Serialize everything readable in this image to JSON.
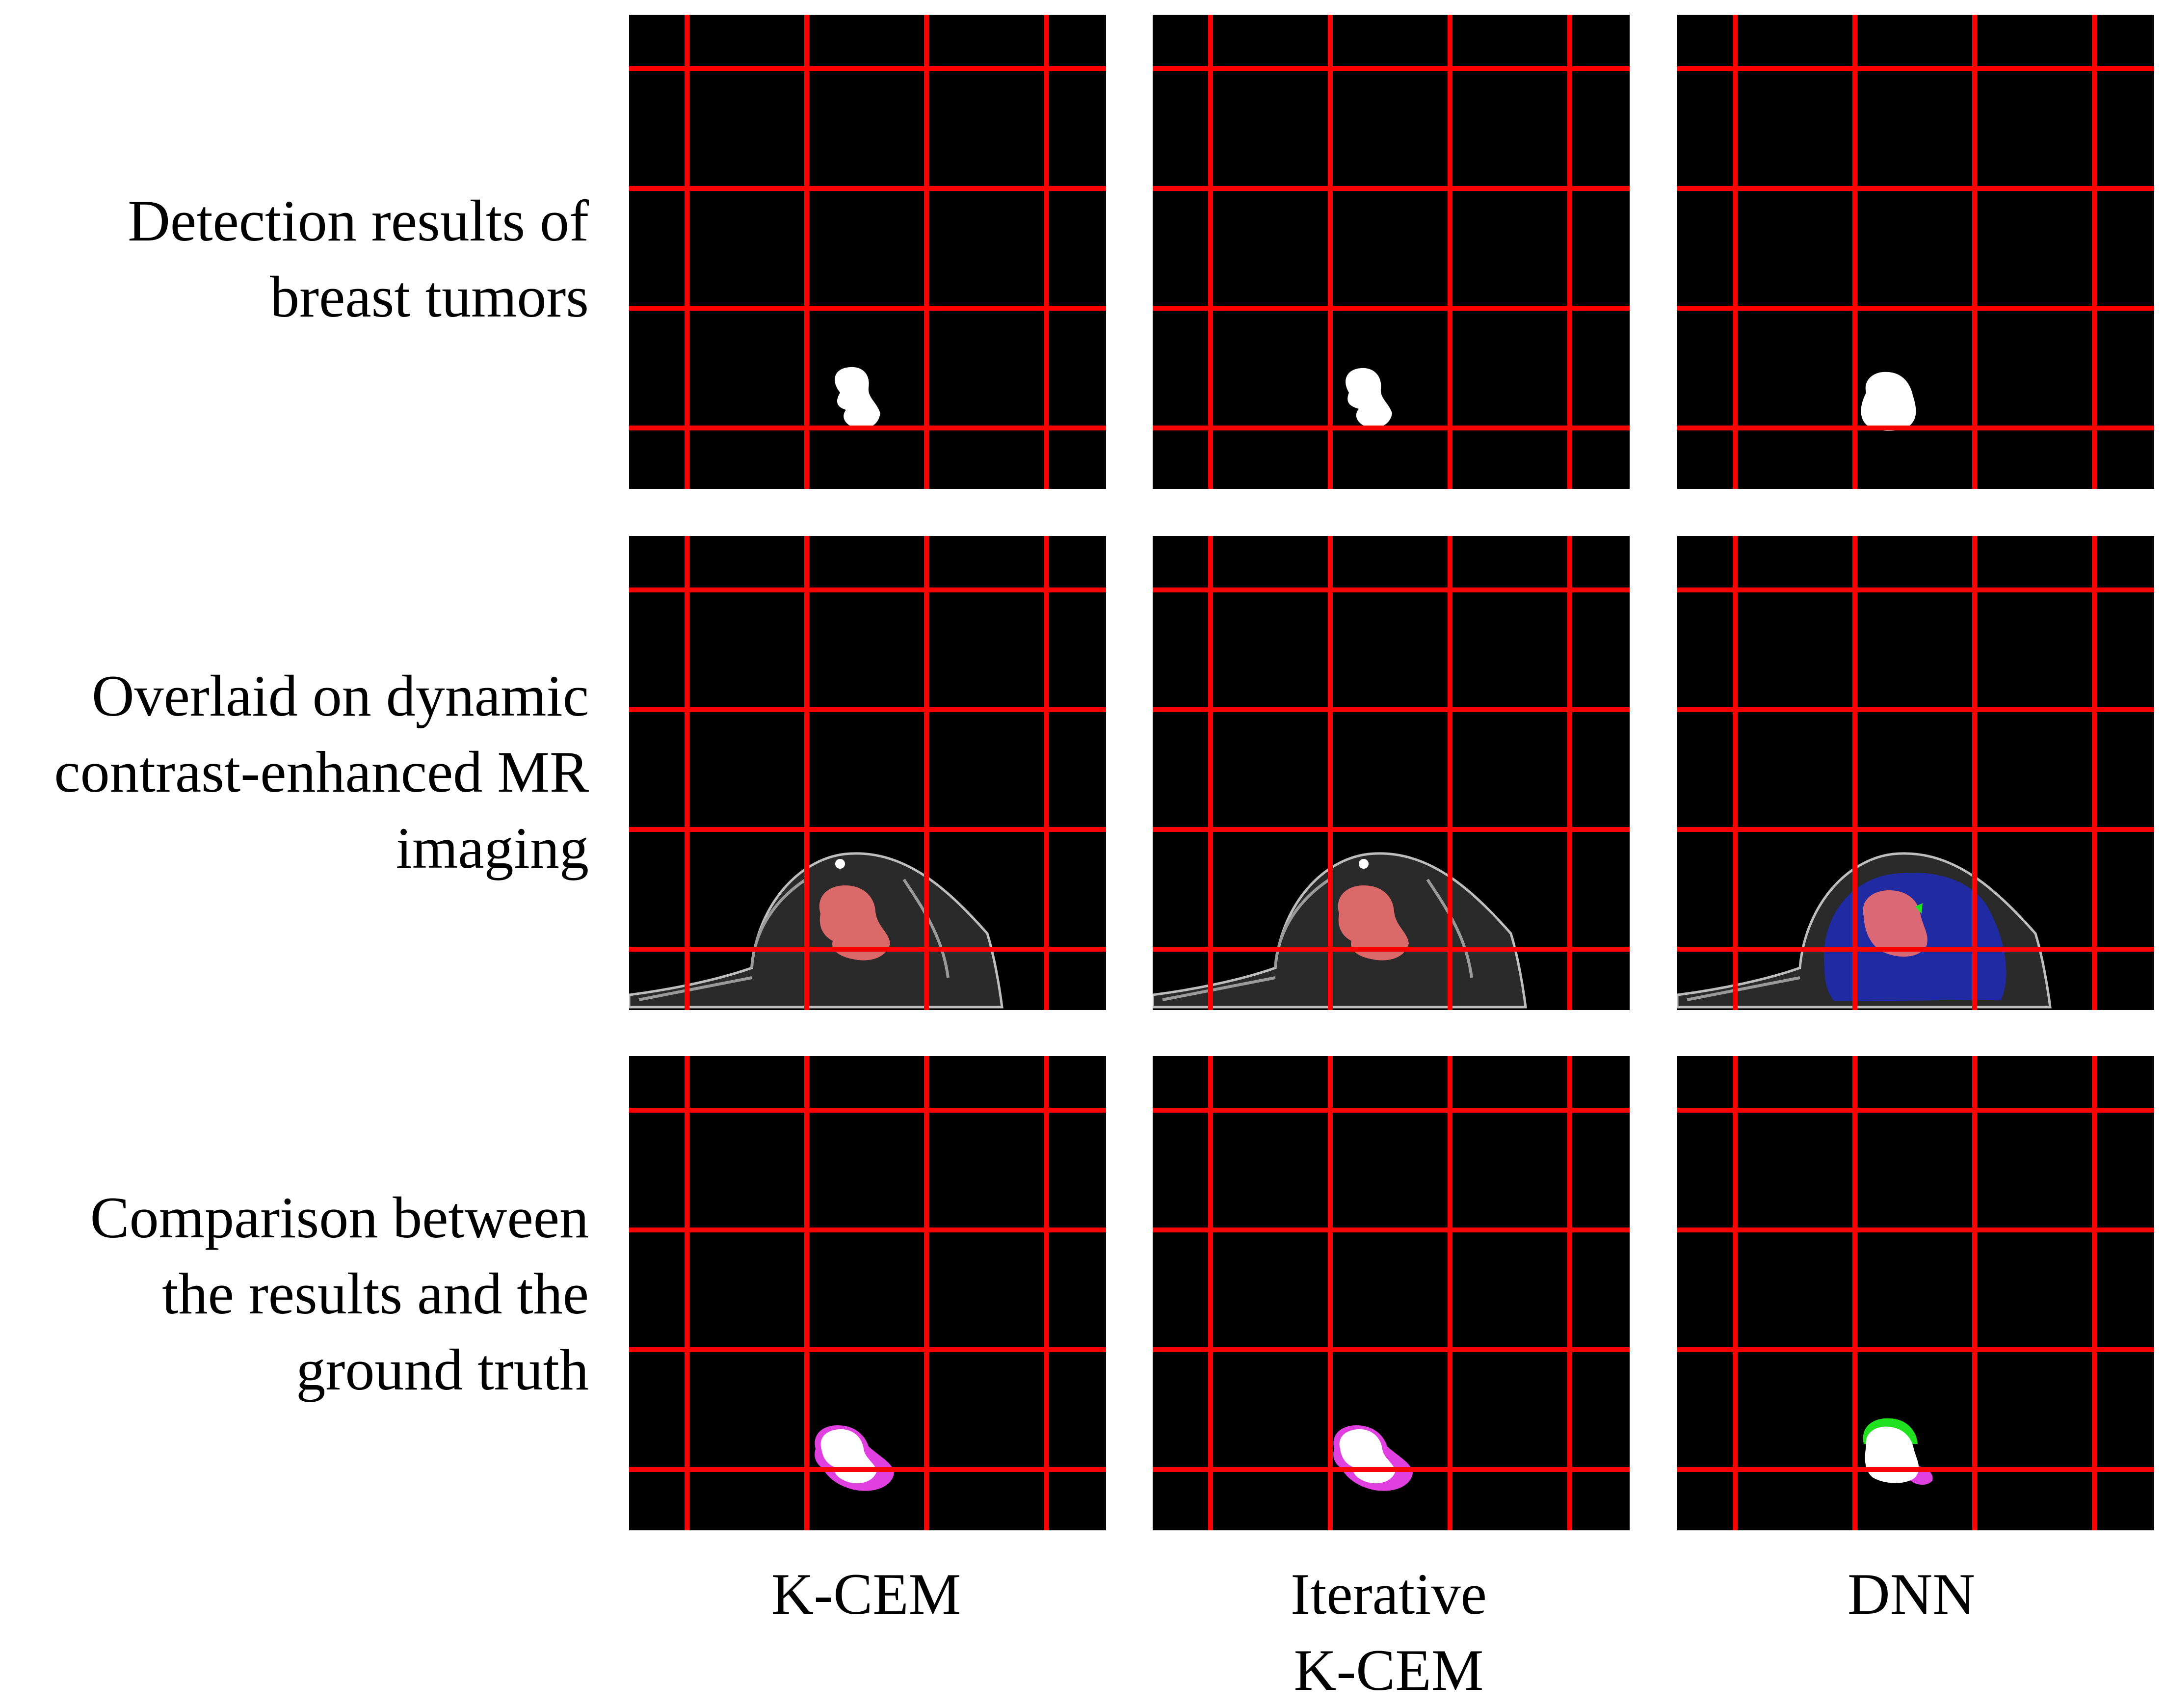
{
  "rows": [
    {
      "id": "detection",
      "label_lines": [
        "Detection results of",
        "breast tumors"
      ]
    },
    {
      "id": "overlay",
      "label_lines": [
        "Overlaid on dynamic",
        "contrast-enhanced MR",
        "imaging"
      ]
    },
    {
      "id": "comparison",
      "label_lines": [
        "Comparison between",
        "the results and the",
        "ground truth"
      ]
    }
  ],
  "columns": [
    {
      "id": "kcem",
      "label_lines": [
        "K-CEM"
      ]
    },
    {
      "id": "iterative-kcem",
      "label_lines": [
        "Iterative",
        "K-CEM"
      ]
    },
    {
      "id": "dnn",
      "label_lines": [
        "DNN"
      ]
    }
  ],
  "colors": {
    "grid_line": "#ff0000",
    "panel_background": "#000000",
    "tumor_mask": "#ffffff",
    "overlay_tumor": "#f07070",
    "overlay_region_dnn": "#1e2ab8",
    "comparison_false_negative": "#e040e0",
    "comparison_false_positive": "#20e020"
  }
}
